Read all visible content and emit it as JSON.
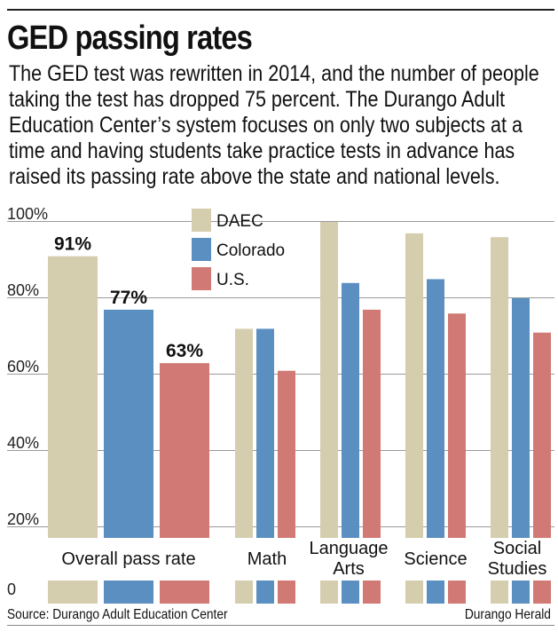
{
  "header": {
    "title": "GED passing rates",
    "subtitle": "The GED test was rewritten in 2014, and the number of people taking the test has dropped 75 percent. The Durango Adult Education Center’s system focuses on only two subjects at a time and having students take practice tests in advance has raised its passing rate above the state and national levels."
  },
  "footer": {
    "source": "Source: Durango Adult Education Center",
    "credit": "Durango Herald"
  },
  "colors": {
    "DAEC": "#d4cdae",
    "Colorado": "#5b8fc2",
    "U.S.": "#d17974",
    "grid": "#9a9a9a"
  },
  "chart_data": {
    "type": "bar",
    "categories": [
      "Overall pass rate",
      "Math",
      "Language Arts",
      "Science",
      "Social Studies"
    ],
    "series": [
      {
        "name": "DAEC",
        "values": [
          91,
          72,
          100,
          97,
          96
        ]
      },
      {
        "name": "Colorado",
        "values": [
          77,
          72,
          84,
          85,
          80
        ]
      },
      {
        "name": "U.S.",
        "values": [
          63,
          61,
          77,
          76,
          71
        ]
      }
    ],
    "data_labels": [
      "91%",
      "77%",
      "63%"
    ],
    "y_ticks": [
      {
        "value": 0,
        "label": "0"
      },
      {
        "value": 20,
        "label": "20%"
      },
      {
        "value": 40,
        "label": "40%"
      },
      {
        "value": 60,
        "label": "60%"
      },
      {
        "value": 80,
        "label": "80%"
      },
      {
        "value": 100,
        "label": "100%"
      }
    ],
    "ylim": [
      0,
      100
    ],
    "legend_position": "top-left",
    "grid": true
  }
}
